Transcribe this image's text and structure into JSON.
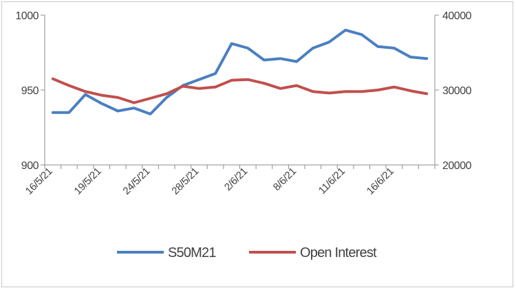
{
  "chart_data": {
    "type": "line",
    "x_tick_labels": [
      "16/5/21",
      "19/5/21",
      "24/5/21",
      "28/5/21",
      "2/6/21",
      "8/6/21",
      "11/6/21",
      "16/6/21"
    ],
    "series": [
      {
        "name": "S50M21",
        "axis": "left",
        "color": "#4a7fc1",
        "values": [
          935,
          935,
          947,
          941,
          936,
          938,
          934,
          945,
          953,
          957,
          961,
          981,
          978,
          970,
          971,
          969,
          978,
          982,
          990,
          987,
          979,
          978,
          972,
          971
        ]
      },
      {
        "name": "Open Interest",
        "axis": "right",
        "color": "#c0504d",
        "values": [
          31500,
          30600,
          29800,
          29300,
          29000,
          28300,
          28900,
          29500,
          30500,
          30200,
          30400,
          31300,
          31400,
          30900,
          30200,
          30600,
          29800,
          29600,
          29800,
          29800,
          30000,
          30400,
          29900,
          29500
        ]
      }
    ],
    "y_left": {
      "min": 900,
      "max": 1000,
      "ticks": [
        "900",
        "950",
        "1000"
      ]
    },
    "y_right": {
      "min": 20000,
      "max": 40000,
      "ticks": [
        "20000",
        "30000",
        "40000"
      ]
    },
    "legend_position": "bottom",
    "grid": false
  }
}
